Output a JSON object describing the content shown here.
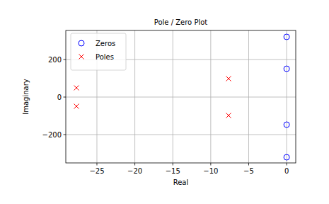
{
  "chart_data": {
    "type": "scatter",
    "title": "Pole / Zero Plot",
    "x_label": "Real",
    "y_label": "Imaginary",
    "series": [
      {
        "name": "Zeros",
        "color": "#0000ff",
        "marker": "circle",
        "x": [
          0,
          0,
          0,
          0
        ],
        "values": [
          321,
          151,
          -147,
          -321
        ]
      },
      {
        "name": "Poles",
        "color": "#ff0000",
        "marker": "x",
        "x": [
          -27.7,
          -27.7,
          -7.65,
          -7.65
        ],
        "values": [
          49,
          -49,
          98,
          -98
        ]
      }
    ],
    "xlim": [
      -29.1,
      1.2
    ],
    "ylim": [
      -351,
      355
    ],
    "xticks": [
      -25,
      -20,
      -15,
      -10,
      -5,
      0
    ],
    "yticks": [
      -200,
      0,
      200
    ],
    "grid": true,
    "legend": "upper left"
  }
}
